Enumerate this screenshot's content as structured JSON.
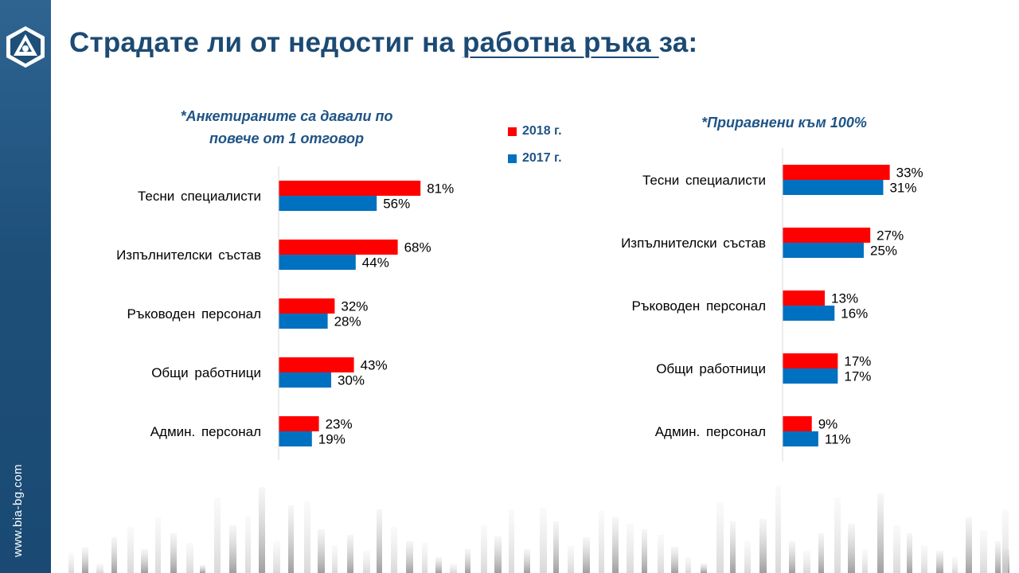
{
  "site_url": "www.bia-bg.com",
  "title": {
    "prefix": "Страдате ли от недостиг на ",
    "underlined": "работна ръка ",
    "suffix": "за:"
  },
  "colors": {
    "series_2018": "#ff0000",
    "series_2017": "#0070c0",
    "title": "#1c4a73",
    "sidebar": "#1d4f79"
  },
  "legend": [
    {
      "label": "2018 г.",
      "color": "#ff0000"
    },
    {
      "label": "2017 г.",
      "color": "#0070c0"
    }
  ],
  "notes": {
    "left_line1": "*Анкетираните са давали по",
    "left_line2": "повече от 1 отговор",
    "right": "*Приравнени към 100%"
  },
  "chart_data": [
    {
      "type": "bar",
      "orientation": "horizontal",
      "categories": [
        "Тесни специалисти",
        "Изпълнителски състав",
        "Ръководен персонал",
        "Общи работници",
        "Админ. персонал"
      ],
      "series": [
        {
          "name": "2018 г.",
          "values": [
            81,
            68,
            32,
            43,
            23
          ],
          "labels": [
            "81%",
            "68%",
            "32%",
            "43%",
            "23%"
          ]
        },
        {
          "name": "2017 г.",
          "values": [
            56,
            44,
            28,
            30,
            19
          ],
          "labels": [
            "56%",
            "44%",
            "28%",
            "30%",
            "19%"
          ]
        }
      ],
      "xlim": [
        0,
        100
      ],
      "unit": "%",
      "note": "*Анкетираните са давали по повече от 1 отговор"
    },
    {
      "type": "bar",
      "orientation": "horizontal",
      "categories": [
        "Тесни специалисти",
        "Изпълнителски състав",
        "Ръководен персонал",
        "Общи работници",
        "Админ. персонал"
      ],
      "series": [
        {
          "name": "2018 г.",
          "values": [
            33,
            27,
            13,
            17,
            9
          ],
          "labels": [
            "33%",
            "27%",
            "13%",
            "17%",
            "9%"
          ]
        },
        {
          "name": "2017 г.",
          "values": [
            31,
            25,
            16,
            17,
            11
          ],
          "labels": [
            "31%",
            "25%",
            "16%",
            "17%",
            "11%"
          ]
        }
      ],
      "xlim": [
        0,
        40
      ],
      "unit": "%",
      "note": "*Приравнени към 100%"
    }
  ]
}
